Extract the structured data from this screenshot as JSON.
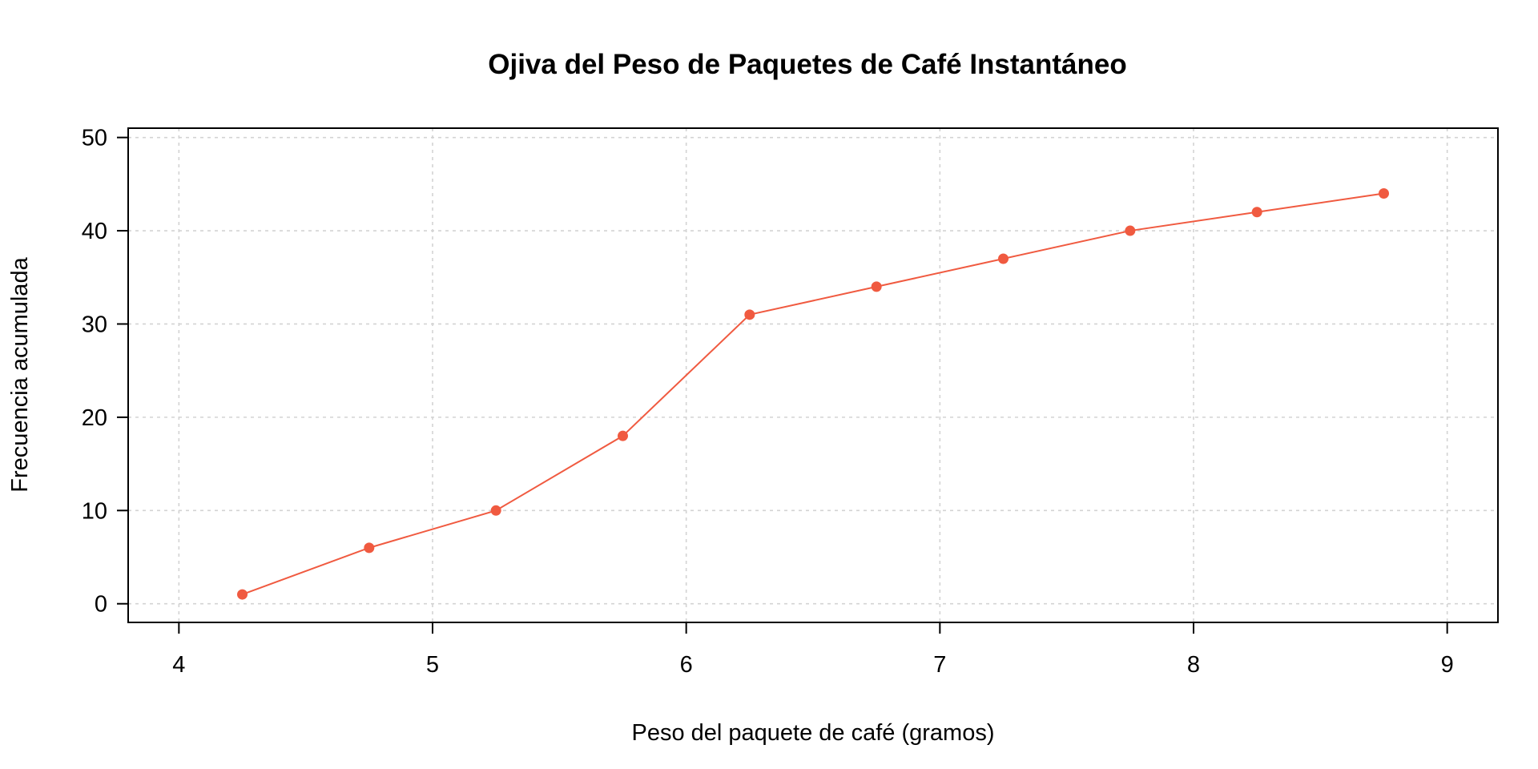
{
  "chart_data": {
    "type": "line",
    "title": "Ojiva del Peso de Paquetes de Café Instantáneo",
    "xlabel": "Peso del paquete de café (gramos)",
    "ylabel": "Frecuencia acumulada",
    "xlim": [
      3.8,
      9.2
    ],
    "ylim": [
      -2,
      51
    ],
    "x_ticks": [
      4,
      5,
      6,
      7,
      8,
      9
    ],
    "y_ticks": [
      0,
      10,
      20,
      30,
      40,
      50
    ],
    "grid": true,
    "legend": "none",
    "line_color": "#f05a40",
    "series": [
      {
        "x": [
          4.25,
          4.75,
          5.25,
          5.75,
          6.25,
          6.75,
          7.25,
          7.75,
          8.25,
          8.75
        ],
        "values": [
          1,
          6,
          10,
          18,
          31,
          34,
          37,
          40,
          42,
          44
        ]
      }
    ]
  }
}
